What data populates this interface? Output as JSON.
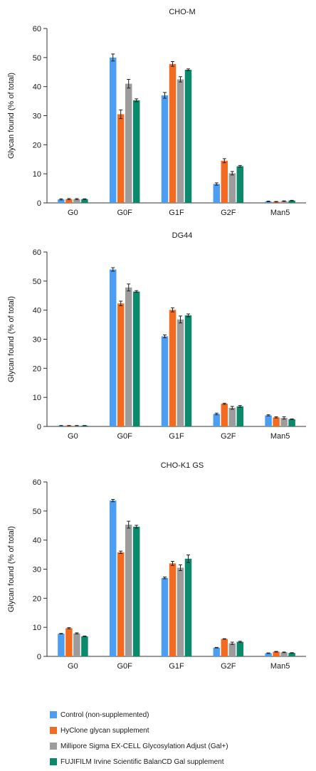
{
  "colors": {
    "control": "#4c9ef2",
    "hyclone": "#f26b21",
    "millipore": "#9c9c9c",
    "fujifilm": "#0a8a6a"
  },
  "chart_data": [
    {
      "type": "bar",
      "title": "CHO-M",
      "ylabel": "Glycan found (% of total)",
      "xlabel": "",
      "ylim": [
        0,
        60
      ],
      "yticks": [
        0,
        10,
        20,
        30,
        40,
        50,
        60
      ],
      "categories": [
        "G0",
        "G0F",
        "G1F",
        "G2F",
        "Man5"
      ],
      "series": [
        {
          "name": "Control (non-supplemented)",
          "values": [
            1.2,
            50.0,
            37.0,
            6.5,
            0.5
          ],
          "errors": [
            0.2,
            1.2,
            1.0,
            0.4,
            0.1
          ]
        },
        {
          "name": "HyClone glycan supplement",
          "values": [
            1.3,
            30.5,
            47.8,
            14.5,
            0.4
          ],
          "errors": [
            0.2,
            1.5,
            0.8,
            0.7,
            0.1
          ]
        },
        {
          "name": "Millipore Sigma EX-CELL Glycosylation Adjust (Gal+)",
          "values": [
            1.3,
            41.0,
            42.5,
            10.2,
            0.6
          ],
          "errors": [
            0.2,
            1.5,
            0.9,
            0.6,
            0.1
          ]
        },
        {
          "name": "FUJIFILM Irvine Scientific BalanCD Gal supplement",
          "values": [
            1.3,
            35.3,
            45.8,
            12.6,
            0.8
          ],
          "errors": [
            0.1,
            0.5,
            0.3,
            0.3,
            0.1
          ]
        }
      ]
    },
    {
      "type": "bar",
      "title": "DG44",
      "ylabel": "Glycan found (% of total)",
      "xlabel": "",
      "ylim": [
        0,
        60
      ],
      "yticks": [
        0,
        10,
        20,
        30,
        40,
        50,
        60
      ],
      "categories": [
        "G0",
        "G0F",
        "G1F",
        "G2F",
        "Man5"
      ],
      "series": [
        {
          "name": "Control (non-supplemented)",
          "values": [
            0.3,
            54.0,
            31.0,
            4.3,
            3.8
          ],
          "errors": [
            0.05,
            0.6,
            0.5,
            0.3,
            0.2
          ]
        },
        {
          "name": "HyClone glycan supplement",
          "values": [
            0.3,
            42.3,
            40.1,
            7.8,
            3.1
          ],
          "errors": [
            0.05,
            0.8,
            0.7,
            0.2,
            0.2
          ]
        },
        {
          "name": "Millipore Sigma EX-CELL Glycosylation Adjust (Gal+)",
          "values": [
            0.3,
            47.8,
            36.8,
            6.4,
            2.9
          ],
          "errors": [
            0.05,
            1.2,
            1.2,
            0.5,
            0.4
          ]
        },
        {
          "name": "FUJIFILM Irvine Scientific BalanCD Gal supplement",
          "values": [
            0.3,
            46.4,
            38.2,
            6.9,
            2.5
          ],
          "errors": [
            0.05,
            0.3,
            0.5,
            0.3,
            0.1
          ]
        }
      ]
    },
    {
      "type": "bar",
      "title": "CHO-K1 GS",
      "ylabel": "Glycan found (% of total)",
      "xlabel": "",
      "ylim": [
        0,
        60
      ],
      "yticks": [
        0,
        10,
        20,
        30,
        40,
        50,
        60
      ],
      "categories": [
        "G0",
        "G0F",
        "G1F",
        "G2F",
        "Man5"
      ],
      "series": [
        {
          "name": "Control (non-supplemented)",
          "values": [
            7.8,
            53.6,
            27.0,
            3.0,
            1.1
          ],
          "errors": [
            0.1,
            0.4,
            0.3,
            0.1,
            0.1
          ]
        },
        {
          "name": "HyClone glycan supplement",
          "values": [
            9.7,
            35.8,
            32.0,
            6.0,
            1.6
          ],
          "errors": [
            0.2,
            0.4,
            0.7,
            0.1,
            0.1
          ]
        },
        {
          "name": "Millipore Sigma EX-CELL Glycosylation Adjust (Gal+)",
          "values": [
            7.9,
            45.3,
            30.5,
            4.5,
            1.4
          ],
          "errors": [
            0.2,
            1.2,
            1.0,
            0.4,
            0.1
          ]
        },
        {
          "name": "FUJIFILM Irvine Scientific BalanCD Gal supplement",
          "values": [
            6.9,
            44.6,
            33.6,
            5.0,
            1.2
          ],
          "errors": [
            0.1,
            0.5,
            1.3,
            0.2,
            0.1
          ]
        }
      ]
    }
  ],
  "legend": [
    {
      "label": "Control (non-supplemented)",
      "color_key": "control"
    },
    {
      "label": "HyClone glycan supplement",
      "color_key": "hyclone"
    },
    {
      "label": "Millipore Sigma EX-CELL Glycosylation Adjust (Gal+)",
      "color_key": "millipore"
    },
    {
      "label": "FUJIFILM Irvine Scientific BalanCD Gal supplement",
      "color_key": "fujifilm"
    }
  ]
}
